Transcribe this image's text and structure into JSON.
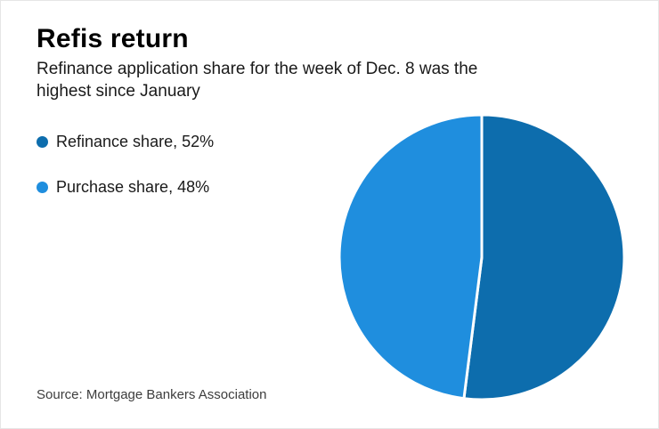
{
  "header": {
    "title": "Refis return",
    "subtitle": "Refinance application share for the week of Dec. 8 was the highest since January"
  },
  "legend": [
    {
      "label": "Refinance share, 52%",
      "color": "#0d6dad"
    },
    {
      "label": "Purchase share, 48%",
      "color": "#1f8ede"
    }
  ],
  "source": "Source: Mortgage Bankers Association",
  "chart_data": {
    "type": "pie",
    "title": "Refis return",
    "subtitle": "Refinance application share for the week of Dec. 8 was the highest since January",
    "labels": [
      "Refinance share",
      "Purchase share"
    ],
    "values": [
      52,
      48
    ],
    "unit": "%",
    "colors": [
      "#0d6dad",
      "#1f8ede"
    ],
    "start_angle_deg": -90,
    "direction": "clockwise",
    "slice_gap_stroke": "#ffffff",
    "legend_position": "left",
    "source": "Source: Mortgage Bankers Association"
  }
}
